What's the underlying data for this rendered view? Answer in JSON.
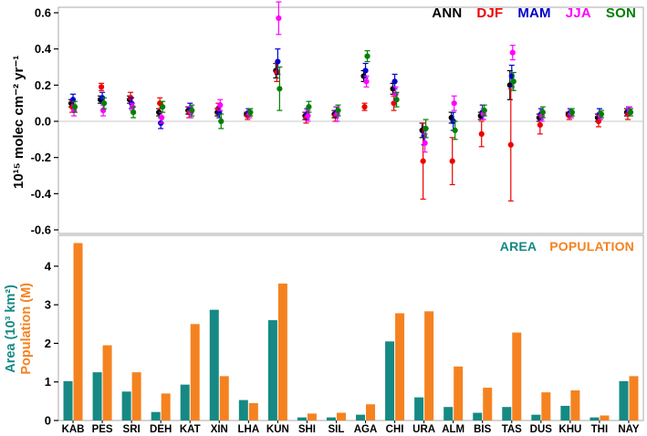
{
  "figure": {
    "trend_ylabel": "10¹⁵ molec cm⁻² yr⁻¹",
    "bars_ylabel_line1": "Area (10³ km²)",
    "bars_ylabel_line2": "Population (M)"
  },
  "chart_data": [
    {
      "type": "scatter",
      "panel": "top",
      "ylabel": "10¹⁵ molec cm⁻² yr⁻¹",
      "ylim": [
        -0.6,
        0.6
      ],
      "ytick_step": 0.2,
      "zero_line": true,
      "legend_position": "top-right",
      "categories": [
        "KAB",
        "PES",
        "SRI",
        "DEH",
        "KAT",
        "XIN",
        "LHA",
        "KUN",
        "SHI",
        "SIL",
        "AGA",
        "CHI",
        "URA",
        "ALM",
        "BIS",
        "TAS",
        "DUS",
        "KHU",
        "THI",
        "NAY"
      ],
      "series": [
        {
          "name": "ANN",
          "color": "#000000",
          "values": [
            0.1,
            0.12,
            0.12,
            0.05,
            0.06,
            0.05,
            0.04,
            0.28,
            0.03,
            0.04,
            0.25,
            0.18,
            -0.05,
            0.02,
            0.03,
            0.2,
            0.02,
            0.04,
            0.02,
            0.05
          ],
          "errors": [
            0.02,
            0.02,
            0.02,
            0.02,
            0.02,
            0.02,
            0.01,
            0.04,
            0.02,
            0.02,
            0.03,
            0.03,
            0.04,
            0.03,
            0.02,
            0.08,
            0.02,
            0.01,
            0.02,
            0.02
          ]
        },
        {
          "name": "DJF",
          "color": "#ee0000",
          "values": [
            0.08,
            0.19,
            0.13,
            0.1,
            0.05,
            0.07,
            0.03,
            0.27,
            0.02,
            0.03,
            0.08,
            0.1,
            -0.22,
            -0.22,
            -0.07,
            -0.13,
            -0.02,
            0.03,
            0.0,
            0.04
          ],
          "errors": [
            0.03,
            0.02,
            0.03,
            0.03,
            0.03,
            0.03,
            0.02,
            0.05,
            0.03,
            0.03,
            0.02,
            0.04,
            0.21,
            0.13,
            0.07,
            0.31,
            0.05,
            0.02,
            0.03,
            0.03
          ]
        },
        {
          "name": "MAM",
          "color": "#0000cc",
          "values": [
            0.12,
            0.13,
            0.1,
            -0.01,
            0.07,
            0.05,
            0.05,
            0.33,
            0.04,
            0.05,
            0.28,
            0.22,
            -0.08,
            0.0,
            0.05,
            0.25,
            0.04,
            0.05,
            0.04,
            0.06
          ],
          "errors": [
            0.03,
            0.03,
            0.03,
            0.03,
            0.03,
            0.03,
            0.02,
            0.07,
            0.03,
            0.03,
            0.04,
            0.04,
            0.05,
            0.05,
            0.04,
            0.06,
            0.03,
            0.02,
            0.03,
            0.02
          ]
        },
        {
          "name": "JJA",
          "color": "#ff00ff",
          "values": [
            0.06,
            0.06,
            0.08,
            0.02,
            0.05,
            0.09,
            0.04,
            0.57,
            0.03,
            0.04,
            0.22,
            0.15,
            -0.12,
            0.1,
            0.04,
            0.38,
            0.03,
            0.04,
            0.03,
            0.06
          ],
          "errors": [
            0.03,
            0.03,
            0.02,
            0.03,
            0.03,
            0.03,
            0.02,
            0.09,
            0.03,
            0.04,
            0.03,
            0.04,
            0.05,
            0.04,
            0.03,
            0.04,
            0.03,
            0.02,
            0.02,
            0.02
          ]
        },
        {
          "name": "SON",
          "color": "#008000",
          "values": [
            0.08,
            0.1,
            0.05,
            0.08,
            0.06,
            0.0,
            0.05,
            0.18,
            0.08,
            0.06,
            0.36,
            0.12,
            -0.04,
            -0.05,
            0.06,
            0.22,
            0.05,
            0.05,
            0.04,
            0.05
          ],
          "errors": [
            0.03,
            0.03,
            0.03,
            0.03,
            0.03,
            0.04,
            0.02,
            0.12,
            0.03,
            0.03,
            0.03,
            0.04,
            0.05,
            0.05,
            0.03,
            0.05,
            0.03,
            0.02,
            0.02,
            0.02
          ]
        }
      ]
    },
    {
      "type": "bar",
      "panel": "bottom",
      "ylabel_line1": "Area (10³ km²)",
      "ylabel_line2": "Population (M)",
      "ylim": [
        0,
        4.8
      ],
      "ytick_step": 1,
      "legend_position": "top-right",
      "categories": [
        "KAB",
        "PES",
        "SRI",
        "DEH",
        "KAT",
        "XIN",
        "LHA",
        "KUN",
        "SHI",
        "SIL",
        "AGA",
        "CHI",
        "URA",
        "ALM",
        "BIS",
        "TAS",
        "DUS",
        "KHU",
        "THI",
        "NAY"
      ],
      "series": [
        {
          "name": "AREA",
          "color": "#168984",
          "values": [
            1.02,
            1.25,
            0.75,
            0.22,
            0.93,
            2.87,
            0.53,
            2.6,
            0.08,
            0.08,
            0.15,
            2.05,
            0.6,
            0.35,
            0.2,
            0.35,
            0.15,
            0.38,
            0.08,
            1.02
          ]
        },
        {
          "name": "POPULATION",
          "color": "#f58220",
          "values": [
            4.6,
            1.95,
            1.25,
            0.7,
            2.5,
            1.15,
            0.45,
            3.55,
            0.18,
            0.2,
            0.42,
            2.78,
            2.83,
            1.4,
            0.85,
            2.28,
            0.73,
            0.78,
            0.13,
            1.15
          ]
        }
      ]
    }
  ]
}
